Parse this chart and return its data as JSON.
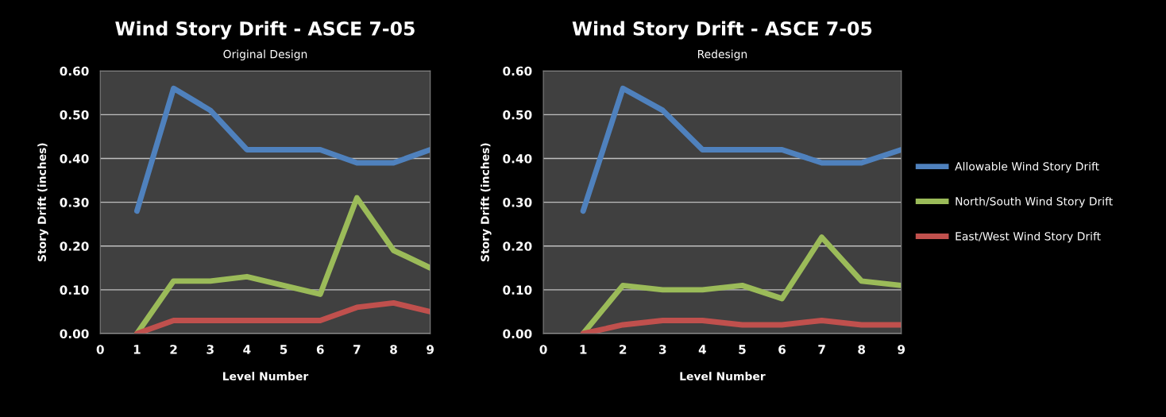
{
  "chart_data": [
    {
      "type": "line",
      "title": "Wind Story Drift - ASCE 7-05",
      "subtitle": "Original Design",
      "xlabel": "Level Number",
      "ylabel": "Story Drift (inches)",
      "x": [
        1,
        2,
        3,
        4,
        5,
        6,
        7,
        8,
        9
      ],
      "series": [
        {
          "color": "#4f81bd",
          "values": [
            0.28,
            0.56,
            0.51,
            0.42,
            0.42,
            0.42,
            0.39,
            0.39,
            0.42
          ]
        },
        {
          "color": "#9bbb59",
          "values": [
            0.0,
            0.12,
            0.12,
            0.13,
            0.11,
            0.09,
            0.31,
            0.19,
            0.15
          ]
        },
        {
          "color": "#c0504d",
          "values": [
            0.0,
            0.03,
            0.03,
            0.03,
            0.03,
            0.03,
            0.06,
            0.07,
            0.05
          ]
        }
      ],
      "xlim": [
        0,
        9
      ],
      "xticks": [
        0,
        1,
        2,
        3,
        4,
        5,
        6,
        7,
        8,
        9
      ],
      "ylim": [
        0,
        0.6
      ],
      "yticks": [
        {
          "value": 0,
          "label": "0.00"
        },
        {
          "value": 0.1,
          "label": "0.10"
        },
        {
          "value": 0.2,
          "label": "0.20"
        },
        {
          "value": 0.3,
          "label": "0.30"
        },
        {
          "value": 0.4,
          "label": "0.40"
        },
        {
          "value": 0.5,
          "label": "0.50"
        },
        {
          "value": 0.6,
          "label": "0.60"
        }
      ],
      "grid": "y",
      "legend": false,
      "marker": "none",
      "line_style": "solid"
    },
    {
      "type": "line",
      "title": "Wind Story Drift - ASCE 7-05",
      "subtitle": "Redesign",
      "xlabel": "Level Number",
      "ylabel": "Story Drift (inches)",
      "x": [
        1,
        2,
        3,
        4,
        5,
        6,
        7,
        8,
        9
      ],
      "series": [
        {
          "name": "Allowable Wind Story Drift",
          "color": "#4f81bd",
          "values": [
            0.28,
            0.56,
            0.51,
            0.42,
            0.42,
            0.42,
            0.39,
            0.39,
            0.42
          ]
        },
        {
          "name": "North/South Wind Story Drift",
          "color": "#9bbb59",
          "values": [
            0.0,
            0.11,
            0.1,
            0.1,
            0.11,
            0.08,
            0.22,
            0.12,
            0.11
          ]
        },
        {
          "name": "East/West Wind Story Drift",
          "color": "#c0504d",
          "values": [
            0.0,
            0.02,
            0.03,
            0.03,
            0.02,
            0.02,
            0.03,
            0.02,
            0.02
          ]
        }
      ],
      "xlim": [
        0,
        9
      ],
      "xticks": [
        0,
        1,
        2,
        3,
        4,
        5,
        6,
        7,
        8,
        9
      ],
      "ylim": [
        0,
        0.6
      ],
      "yticks": [
        {
          "value": 0,
          "label": "0.00"
        },
        {
          "value": 0.1,
          "label": "0.10"
        },
        {
          "value": 0.2,
          "label": "0.20"
        },
        {
          "value": 0.3,
          "label": "0.30"
        },
        {
          "value": 0.4,
          "label": "0.40"
        },
        {
          "value": 0.5,
          "label": "0.50"
        },
        {
          "value": 0.6,
          "label": "0.60"
        }
      ],
      "grid": "y",
      "legend": "right",
      "marker": "none",
      "line_style": "solid"
    }
  ]
}
